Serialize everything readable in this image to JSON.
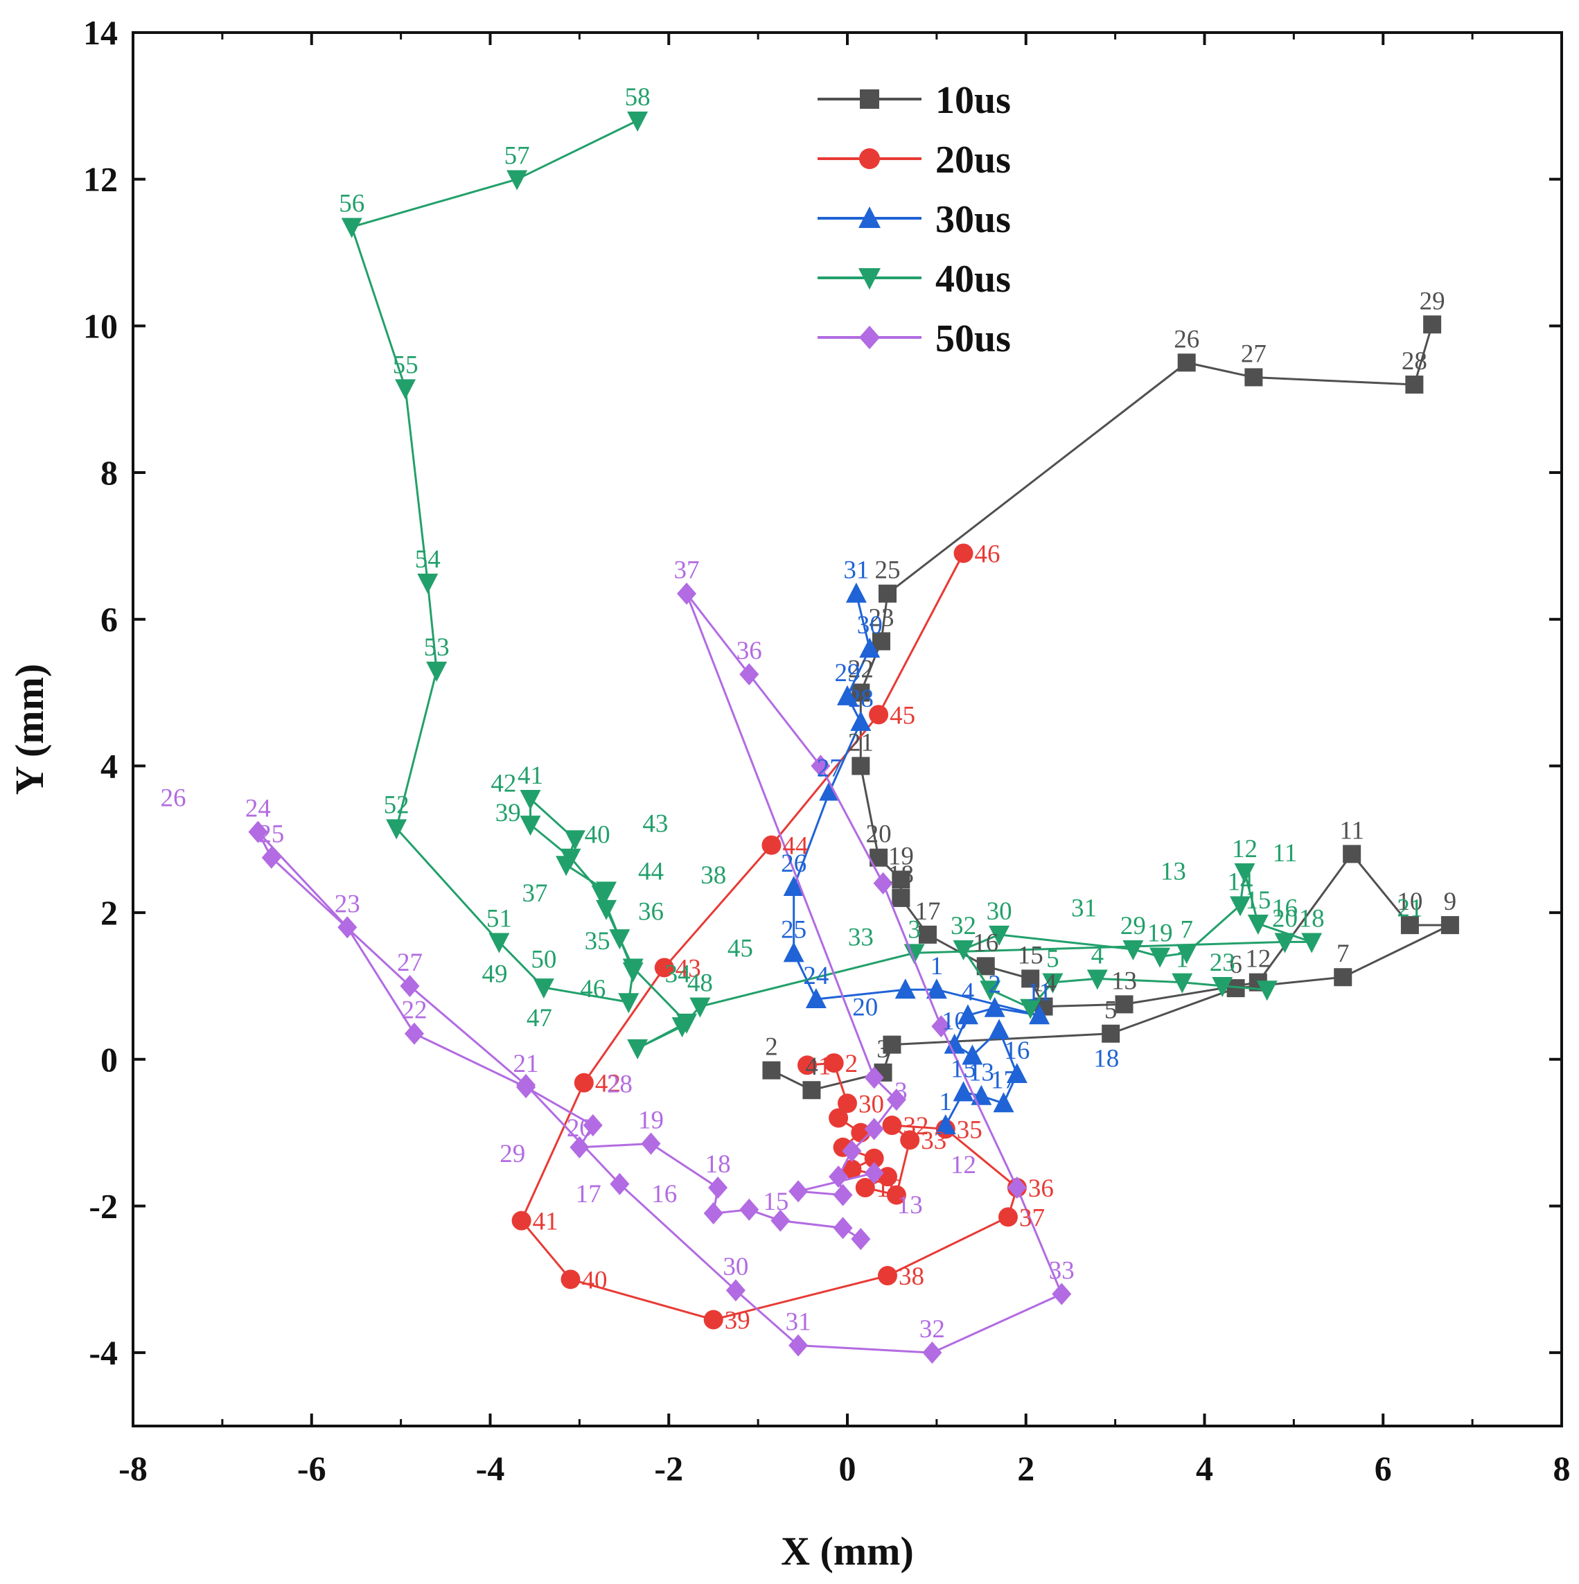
{
  "chart_data": {
    "type": "line",
    "title": "",
    "xlabel": "X (mm)",
    "ylabel": "Y (mm)",
    "xlim": [
      -8,
      8
    ],
    "ylim": [
      -5,
      14
    ],
    "xticks": [
      -8,
      -6,
      -4,
      -2,
      0,
      2,
      4,
      6,
      8
    ],
    "yticks": [
      -4,
      -2,
      0,
      2,
      4,
      6,
      8,
      10,
      12,
      14
    ],
    "xtick_labels": [
      "-8",
      "-6",
      "-4",
      "-2",
      "0",
      "2",
      "4",
      "6",
      "8"
    ],
    "ytick_labels": [
      "-4",
      "-2",
      "0",
      "2",
      "4",
      "6",
      "8",
      "10",
      "12",
      "14"
    ],
    "legend_position": "top-center",
    "series": [
      {
        "name": "10us",
        "color": "#505050",
        "marker": "square",
        "points": [
          {
            "x": -0.85,
            "y": -0.15,
            "label": "2"
          },
          {
            "x": -0.4,
            "y": -0.42,
            "label": "4"
          },
          {
            "x": 0.4,
            "y": -0.18,
            "label": "3"
          },
          {
            "x": 0.5,
            "y": 0.2,
            "label": ""
          },
          {
            "x": 2.95,
            "y": 0.35,
            "label": "5"
          },
          {
            "x": 4.35,
            "y": 0.97,
            "label": "6"
          },
          {
            "x": 5.55,
            "y": 1.12,
            "label": "7"
          },
          {
            "x": 6.75,
            "y": 1.83,
            "label": "9"
          },
          {
            "x": 6.3,
            "y": 1.83,
            "label": "10"
          },
          {
            "x": 5.65,
            "y": 2.8,
            "label": "11"
          },
          {
            "x": 4.6,
            "y": 1.05,
            "label": "12"
          },
          {
            "x": 3.1,
            "y": 0.75,
            "label": "13"
          },
          {
            "x": 2.2,
            "y": 0.72,
            "label": "14"
          },
          {
            "x": 2.05,
            "y": 1.1,
            "label": "15"
          },
          {
            "x": 1.55,
            "y": 1.27,
            "label": "16"
          },
          {
            "x": 0.9,
            "y": 1.7,
            "label": "17"
          },
          {
            "x": 0.6,
            "y": 2.2,
            "label": "18"
          },
          {
            "x": 0.6,
            "y": 2.45,
            "label": "19"
          },
          {
            "x": 0.35,
            "y": 2.75,
            "label": "20"
          },
          {
            "x": 0.15,
            "y": 4.0,
            "label": "21"
          },
          {
            "x": 0.15,
            "y": 5.0,
            "label": "22"
          },
          {
            "x": 0.38,
            "y": 5.7,
            "label": "23"
          },
          {
            "x": 0.45,
            "y": 6.35,
            "label": "25"
          },
          {
            "x": 3.8,
            "y": 9.5,
            "label": "26"
          },
          {
            "x": 4.55,
            "y": 9.3,
            "label": "27"
          },
          {
            "x": 6.35,
            "y": 9.2,
            "label": "28"
          },
          {
            "x": 6.55,
            "y": 10.02,
            "label": "29"
          }
        ]
      },
      {
        "name": "20us",
        "color": "#e83a35",
        "marker": "circle",
        "points": [
          {
            "x": -0.45,
            "y": -0.08,
            "label": "1"
          },
          {
            "x": -0.15,
            "y": -0.05,
            "label": "2"
          },
          {
            "x": 0.0,
            "y": -0.6,
            "label": "30"
          },
          {
            "x": -0.1,
            "y": -0.8,
            "label": ""
          },
          {
            "x": 0.15,
            "y": -1.0,
            "label": ""
          },
          {
            "x": -0.05,
            "y": -1.2,
            "label": ""
          },
          {
            "x": 0.3,
            "y": -1.35,
            "label": ""
          },
          {
            "x": 0.05,
            "y": -1.5,
            "label": ""
          },
          {
            "x": 0.45,
            "y": -1.6,
            "label": ""
          },
          {
            "x": 0.2,
            "y": -1.75,
            "label": "16"
          },
          {
            "x": 0.55,
            "y": -1.85,
            "label": ""
          },
          {
            "x": 0.7,
            "y": -1.1,
            "label": "33"
          },
          {
            "x": 0.5,
            "y": -0.9,
            "label": "32"
          },
          {
            "x": 1.1,
            "y": -0.95,
            "label": "35"
          },
          {
            "x": 1.9,
            "y": -1.75,
            "label": "36"
          },
          {
            "x": 1.8,
            "y": -2.15,
            "label": "37"
          },
          {
            "x": 0.45,
            "y": -2.95,
            "label": "38"
          },
          {
            "x": -1.5,
            "y": -3.55,
            "label": "39"
          },
          {
            "x": -3.1,
            "y": -3.0,
            "label": "40"
          },
          {
            "x": -3.65,
            "y": -2.2,
            "label": "41"
          },
          {
            "x": -2.95,
            "y": -0.32,
            "label": "42"
          },
          {
            "x": -2.05,
            "y": 1.25,
            "label": "43"
          },
          {
            "x": -0.85,
            "y": 2.92,
            "label": "44"
          },
          {
            "x": 0.35,
            "y": 4.7,
            "label": "45"
          },
          {
            "x": 1.3,
            "y": 6.9,
            "label": "46"
          }
        ]
      },
      {
        "name": "30us",
        "color": "#1f63d6",
        "marker": "triangle-up",
        "points": [
          {
            "x": 1.1,
            "y": -0.9,
            "label": "1"
          },
          {
            "x": 1.3,
            "y": -0.45,
            "label": "15"
          },
          {
            "x": 1.5,
            "y": -0.5,
            "label": "13"
          },
          {
            "x": 1.75,
            "y": -0.6,
            "label": "17"
          },
          {
            "x": 1.9,
            "y": -0.2,
            "label": "16"
          },
          {
            "x": 1.7,
            "y": 0.4,
            "label": ""
          },
          {
            "x": 1.4,
            "y": 0.05,
            "label": ""
          },
          {
            "x": 1.2,
            "y": 0.2,
            "label": "10"
          },
          {
            "x": 1.35,
            "y": 0.6,
            "label": "4"
          },
          {
            "x": 1.65,
            "y": 0.7,
            "label": "2"
          },
          {
            "x": 2.15,
            "y": 0.6,
            "label": "11"
          },
          {
            "x": 1.0,
            "y": 0.95,
            "label": "1"
          },
          {
            "x": 0.65,
            "y": 0.95,
            "label": ""
          },
          {
            "x": -0.35,
            "y": 0.82,
            "label": "24"
          },
          {
            "x": -0.6,
            "y": 1.45,
            "label": "25"
          },
          {
            "x": -0.6,
            "y": 2.35,
            "label": "26"
          },
          {
            "x": -0.2,
            "y": 3.65,
            "label": "27"
          },
          {
            "x": 0.15,
            "y": 4.6,
            "label": "28"
          },
          {
            "x": 0.0,
            "y": 4.95,
            "label": "29"
          },
          {
            "x": 0.25,
            "y": 5.6,
            "label": "30"
          },
          {
            "x": 0.1,
            "y": 6.35,
            "label": "31"
          }
        ]
      },
      {
        "name": "40us",
        "color": "#22a06b",
        "marker": "triangle-down",
        "points": [
          {
            "x": 4.7,
            "y": 0.95,
            "label": ""
          },
          {
            "x": 4.2,
            "y": 1.0,
            "label": "23"
          },
          {
            "x": 3.75,
            "y": 1.05,
            "label": "1"
          },
          {
            "x": 2.8,
            "y": 1.1,
            "label": "4"
          },
          {
            "x": 2.3,
            "y": 1.05,
            "label": "5"
          },
          {
            "x": 2.05,
            "y": 0.7,
            "label": ""
          },
          {
            "x": 1.6,
            "y": 0.95,
            "label": ""
          },
          {
            "x": 1.3,
            "y": 1.5,
            "label": "32"
          },
          {
            "x": 1.7,
            "y": 1.7,
            "label": "30"
          },
          {
            "x": 3.2,
            "y": 1.5,
            "label": "29"
          },
          {
            "x": 3.5,
            "y": 1.4,
            "label": "19"
          },
          {
            "x": 3.8,
            "y": 1.45,
            "label": "7"
          },
          {
            "x": 4.4,
            "y": 2.1,
            "label": "14"
          },
          {
            "x": 4.45,
            "y": 2.55,
            "label": "12"
          },
          {
            "x": 4.6,
            "y": 1.85,
            "label": "15"
          },
          {
            "x": 5.2,
            "y": 1.6,
            "label": "18"
          },
          {
            "x": 4.9,
            "y": 1.6,
            "label": "20"
          },
          {
            "x": 0.75,
            "y": 1.45,
            "label": "3"
          },
          {
            "x": -1.65,
            "y": 0.72,
            "label": "48"
          },
          {
            "x": -1.85,
            "y": 0.45,
            "label": ""
          },
          {
            "x": -2.35,
            "y": 0.15,
            "label": ""
          },
          {
            "x": -1.8,
            "y": 0.5,
            "label": ""
          },
          {
            "x": -2.4,
            "y": 1.25,
            "label": ""
          },
          {
            "x": -2.55,
            "y": 1.65,
            "label": ""
          },
          {
            "x": -2.7,
            "y": 2.05,
            "label": ""
          },
          {
            "x": -2.7,
            "y": 2.3,
            "label": ""
          },
          {
            "x": -3.15,
            "y": 2.65,
            "label": ""
          },
          {
            "x": -3.05,
            "y": 3.0,
            "label": ""
          },
          {
            "x": -3.55,
            "y": 3.55,
            "label": "41"
          },
          {
            "x": -3.55,
            "y": 3.2,
            "label": ""
          },
          {
            "x": -3.1,
            "y": 2.75,
            "label": ""
          },
          {
            "x": -2.75,
            "y": 2.25,
            "label": ""
          },
          {
            "x": -2.4,
            "y": 1.2,
            "label": ""
          },
          {
            "x": -2.45,
            "y": 0.78,
            "label": ""
          },
          {
            "x": -3.4,
            "y": 0.98,
            "label": ""
          },
          {
            "x": -3.9,
            "y": 1.6,
            "label": "51"
          },
          {
            "x": -5.05,
            "y": 3.15,
            "label": "52"
          },
          {
            "x": -4.6,
            "y": 5.3,
            "label": "53"
          },
          {
            "x": -4.7,
            "y": 6.5,
            "label": "54"
          },
          {
            "x": -4.95,
            "y": 9.15,
            "label": "55"
          },
          {
            "x": -5.55,
            "y": 11.35,
            "label": "56"
          },
          {
            "x": -3.7,
            "y": 12.0,
            "label": "57"
          },
          {
            "x": -2.35,
            "y": 12.8,
            "label": "58"
          }
        ]
      },
      {
        "name": "50us",
        "color": "#b26be2",
        "marker": "diamond",
        "points": [
          {
            "x": 0.15,
            "y": -2.45,
            "label": ""
          },
          {
            "x": -0.05,
            "y": -2.3,
            "label": ""
          },
          {
            "x": -0.75,
            "y": -2.2,
            "label": ""
          },
          {
            "x": -1.1,
            "y": -2.05,
            "label": ""
          },
          {
            "x": -1.5,
            "y": -2.1,
            "label": ""
          },
          {
            "x": -1.45,
            "y": -1.75,
            "label": "18"
          },
          {
            "x": -2.2,
            "y": -1.15,
            "label": "19"
          },
          {
            "x": -3.0,
            "y": -1.2,
            "label": ""
          },
          {
            "x": -2.85,
            "y": -0.9,
            "label": ""
          },
          {
            "x": -3.6,
            "y": -0.38,
            "label": "21"
          },
          {
            "x": -4.85,
            "y": 0.35,
            "label": "22"
          },
          {
            "x": -5.6,
            "y": 1.8,
            "label": "23"
          },
          {
            "x": -6.6,
            "y": 3.1,
            "label": "24"
          },
          {
            "x": -6.45,
            "y": 2.75,
            "label": "25"
          },
          {
            "x": -4.9,
            "y": 1.0,
            "label": "27"
          },
          {
            "x": -3.6,
            "y": -0.35,
            "label": ""
          },
          {
            "x": -2.55,
            "y": -1.7,
            "label": ""
          },
          {
            "x": -1.25,
            "y": -3.15,
            "label": "30"
          },
          {
            "x": -0.55,
            "y": -3.9,
            "label": "31"
          },
          {
            "x": 0.95,
            "y": -4.0,
            "label": "32"
          },
          {
            "x": 2.4,
            "y": -3.2,
            "label": "33"
          },
          {
            "x": 1.9,
            "y": -1.75,
            "label": ""
          },
          {
            "x": 1.05,
            "y": 0.45,
            "label": ""
          },
          {
            "x": 0.4,
            "y": 2.4,
            "label": ""
          },
          {
            "x": -0.3,
            "y": 4.0,
            "label": ""
          },
          {
            "x": -1.1,
            "y": 5.25,
            "label": "36"
          },
          {
            "x": -1.8,
            "y": 6.35,
            "label": "37"
          },
          {
            "x": 0.3,
            "y": -0.25,
            "label": ""
          },
          {
            "x": 0.55,
            "y": -0.55,
            "label": ""
          },
          {
            "x": 0.3,
            "y": -0.95,
            "label": ""
          },
          {
            "x": 0.05,
            "y": -1.25,
            "label": ""
          },
          {
            "x": -0.1,
            "y": -1.6,
            "label": ""
          },
          {
            "x": -0.05,
            "y": -1.85,
            "label": ""
          },
          {
            "x": -0.55,
            "y": -1.8,
            "label": ""
          },
          {
            "x": 0.3,
            "y": -1.55,
            "label": ""
          }
        ]
      }
    ],
    "annotations": [
      {
        "text": "26",
        "x": -7.55,
        "y": 3.45,
        "color": "#b26be2"
      },
      {
        "text": "20",
        "x": -3.0,
        "y": -1.05,
        "color": "#b26be2"
      },
      {
        "text": "28",
        "x": -2.55,
        "y": -0.45,
        "color": "#b26be2"
      },
      {
        "text": "29",
        "x": -3.75,
        "y": -1.4,
        "color": "#b26be2"
      },
      {
        "text": "17",
        "x": -2.9,
        "y": -1.95,
        "color": "#b26be2"
      },
      {
        "text": "16",
        "x": -2.05,
        "y": -1.95,
        "color": "#b26be2"
      },
      {
        "text": "15",
        "x": -0.8,
        "y": -2.05,
        "color": "#b26be2"
      },
      {
        "text": "13",
        "x": 0.7,
        "y": -2.1,
        "color": "#b26be2"
      },
      {
        "text": "12",
        "x": 1.3,
        "y": -1.55,
        "color": "#b26be2"
      },
      {
        "text": "3",
        "x": 0.6,
        "y": -0.55,
        "color": "#b26be2"
      },
      {
        "text": "43",
        "x": -2.15,
        "y": 3.1,
        "color": "#22a06b"
      },
      {
        "text": "44",
        "x": -2.2,
        "y": 2.45,
        "color": "#22a06b"
      },
      {
        "text": "38",
        "x": -1.5,
        "y": 2.4,
        "color": "#22a06b"
      },
      {
        "text": "42",
        "x": -3.85,
        "y": 3.65,
        "color": "#22a06b"
      },
      {
        "text": "39",
        "x": -3.8,
        "y": 3.25,
        "color": "#22a06b"
      },
      {
        "text": "40",
        "x": -2.8,
        "y": 2.95,
        "color": "#22a06b"
      },
      {
        "text": "37",
        "x": -3.5,
        "y": 2.15,
        "color": "#22a06b"
      },
      {
        "text": "36",
        "x": -2.2,
        "y": 1.9,
        "color": "#22a06b"
      },
      {
        "text": "35",
        "x": -2.8,
        "y": 1.5,
        "color": "#22a06b"
      },
      {
        "text": "45",
        "x": -1.2,
        "y": 1.4,
        "color": "#22a06b"
      },
      {
        "text": "34",
        "x": -1.9,
        "y": 1.05,
        "color": "#22a06b"
      },
      {
        "text": "46",
        "x": -2.85,
        "y": 0.85,
        "color": "#22a06b"
      },
      {
        "text": "50",
        "x": -3.4,
        "y": 1.25,
        "color": "#22a06b"
      },
      {
        "text": "49",
        "x": -3.95,
        "y": 1.05,
        "color": "#22a06b"
      },
      {
        "text": "47",
        "x": -3.45,
        "y": 0.45,
        "color": "#22a06b"
      },
      {
        "text": "33",
        "x": 0.15,
        "y": 1.55,
        "color": "#22a06b"
      },
      {
        "text": "31",
        "x": 2.65,
        "y": 1.95,
        "color": "#22a06b"
      },
      {
        "text": "13",
        "x": 3.65,
        "y": 2.45,
        "color": "#22a06b"
      },
      {
        "text": "11",
        "x": 4.9,
        "y": 2.7,
        "color": "#22a06b"
      },
      {
        "text": "16",
        "x": 4.9,
        "y": 1.95,
        "color": "#22a06b"
      },
      {
        "text": "21",
        "x": 6.3,
        "y": 1.95,
        "color": "#22a06b"
      },
      {
        "text": "20",
        "x": 0.2,
        "y": 0.6,
        "color": "#1f63d6"
      },
      {
        "text": "18",
        "x": 2.9,
        "y": -0.1,
        "color": "#1f63d6"
      }
    ]
  },
  "legend": {
    "items": [
      {
        "label": "10us",
        "color": "#505050",
        "marker": "square"
      },
      {
        "label": "20us",
        "color": "#e83a35",
        "marker": "circle"
      },
      {
        "label": "30us",
        "color": "#1f63d6",
        "marker": "triangle-up"
      },
      {
        "label": "40us",
        "color": "#22a06b",
        "marker": "triangle-down"
      },
      {
        "label": "50us",
        "color": "#b26be2",
        "marker": "diamond"
      }
    ]
  }
}
